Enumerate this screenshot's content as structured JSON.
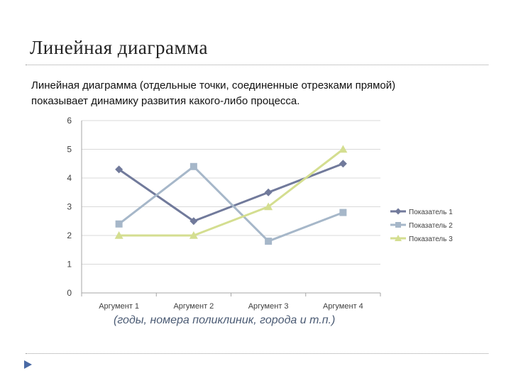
{
  "slide": {
    "title": "Линейная диаграмма",
    "text_line1": "Линейная диаграмма (отдельные точки, соединенные отрезками прямой)",
    "text_line2": "показывает динамику развития какого-либо процесса.",
    "caption": "(годы, номера поликлиник, города и т.п.)"
  },
  "chart_data": {
    "type": "line",
    "categories": [
      "Аргумент 1",
      "Аргумент 2",
      "Аргумент 3",
      "Аргумент 4"
    ],
    "ylim": [
      0,
      6
    ],
    "yticks": [
      0,
      1,
      2,
      3,
      4,
      5,
      6
    ],
    "grid": true,
    "legend_position": "right",
    "series": [
      {
        "name": "Показатель 1",
        "values": [
          4.3,
          2.5,
          3.5,
          4.5
        ],
        "color": "#717a9b",
        "marker": "diamond"
      },
      {
        "name": "Показатель 2",
        "values": [
          2.4,
          4.4,
          1.8,
          2.8
        ],
        "color": "#a6b7c9",
        "marker": "square"
      },
      {
        "name": "Показатель 3",
        "values": [
          2.0,
          2.0,
          3.0,
          5.0
        ],
        "color": "#d4de90",
        "marker": "triangle"
      }
    ]
  },
  "colors": {
    "accent": "#4a6aa5",
    "grid": "#d9d9d9",
    "axis": "#a6a6a6"
  },
  "icons": {
    "nav": "triangle-right-icon"
  }
}
